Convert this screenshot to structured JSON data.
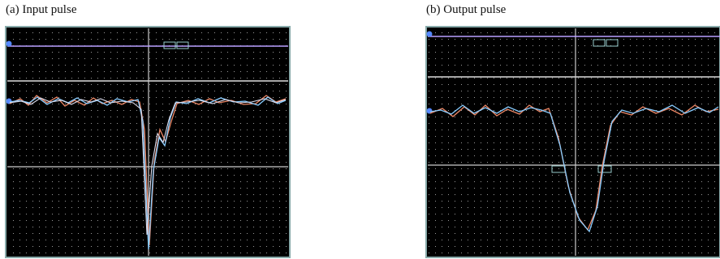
{
  "panels": [
    {
      "caption": "(a) Input pulse"
    },
    {
      "caption": "(b) Output pulse"
    }
  ]
}
